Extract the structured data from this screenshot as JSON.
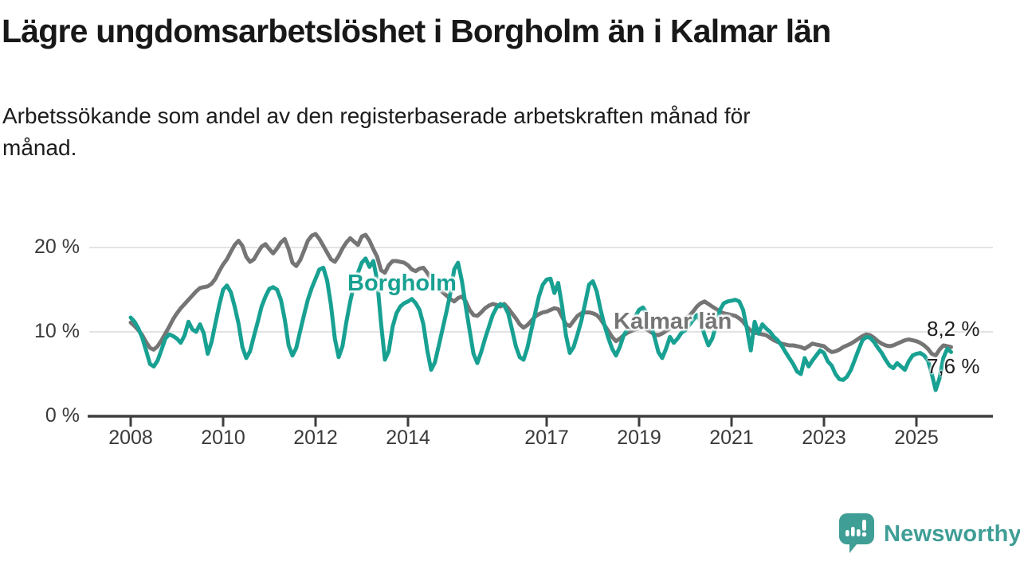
{
  "header": {
    "title": "Lägre ungdomsarbetslöshet i Borgholm än i Kalmar län",
    "subtitle_lines": [
      "Arbetssökande som andel av den registerbaserade arbetskraften månad för",
      "månad."
    ]
  },
  "chart_data": {
    "type": "line",
    "title": "Lägre ungdomsarbetslöshet i Borgholm än i Kalmar län",
    "subtitle": "Arbetssökande som andel av den registerbaserade arbetskraften månad för månad.",
    "x_start": 2008.0,
    "x_step_years": 0.0833333,
    "x_axis": {
      "ticks": [
        2008,
        2010,
        2012,
        2014,
        2017,
        2019,
        2021,
        2023,
        2025
      ]
    },
    "y_axis": {
      "range": [
        0,
        23
      ],
      "ticks": [
        {
          "value": 0,
          "label": "0 %"
        },
        {
          "value": 10,
          "label": "10 %"
        },
        {
          "value": 20,
          "label": "20 %"
        }
      ]
    },
    "grid": true,
    "legend_position": "inline-labels",
    "series": [
      {
        "name": "Borgholm",
        "color": "#18a192",
        "end_label": "7,6 %",
        "values": [
          11.7,
          11.2,
          10.4,
          9.3,
          7.8,
          6.2,
          5.9,
          6.6,
          7.9,
          9.2,
          9.7,
          9.5,
          9.2,
          8.7,
          9.6,
          11.2,
          10.3,
          10.0,
          10.9,
          9.8,
          7.4,
          8.8,
          11.0,
          13.2,
          15.0,
          15.5,
          14.7,
          13.0,
          11.0,
          8.2,
          6.9,
          7.7,
          9.5,
          11.2,
          13.0,
          14.2,
          15.1,
          15.3,
          15.0,
          13.8,
          11.5,
          8.4,
          7.2,
          8.1,
          10.1,
          12.0,
          13.8,
          15.2,
          16.3,
          17.4,
          17.6,
          16.1,
          13.2,
          9.2,
          7.0,
          8.3,
          11.2,
          13.6,
          15.6,
          17.0,
          18.2,
          18.7,
          17.7,
          18.4,
          16.1,
          11.0,
          6.7,
          7.7,
          10.6,
          12.2,
          13.0,
          13.4,
          13.6,
          13.9,
          13.4,
          12.6,
          10.9,
          7.8,
          5.5,
          6.4,
          8.4,
          10.4,
          12.4,
          14.6,
          17.4,
          18.2,
          16.0,
          13.0,
          10.2,
          7.4,
          6.3,
          7.6,
          9.2,
          10.6,
          12.0,
          12.9,
          13.3,
          13.1,
          12.2,
          10.3,
          8.3,
          7.0,
          6.7,
          8.1,
          10.2,
          12.2,
          14.2,
          15.6,
          16.2,
          16.3,
          14.6,
          15.8,
          13.1,
          9.6,
          7.5,
          8.2,
          9.7,
          11.3,
          13.4,
          15.6,
          16.0,
          14.8,
          12.6,
          10.8,
          9.3,
          8.0,
          7.2,
          8.2,
          9.6,
          10.3,
          10.8,
          11.8,
          12.6,
          12.9,
          12.2,
          10.9,
          9.4,
          7.6,
          6.9,
          8.0,
          9.4,
          8.7,
          9.2,
          9.9,
          10.2,
          10.8,
          11.4,
          12.0,
          11.2,
          9.6,
          8.4,
          9.2,
          10.8,
          12.6,
          13.4,
          13.6,
          13.7,
          13.8,
          13.6,
          12.6,
          10.4,
          7.8,
          11.2,
          9.8,
          10.9,
          10.4,
          10.0,
          9.4,
          9.0,
          8.4,
          7.6,
          6.9,
          6.2,
          5.3,
          5.0,
          6.9,
          5.9,
          6.6,
          7.2,
          7.8,
          7.5,
          6.5,
          6.0,
          5.0,
          4.4,
          4.3,
          4.7,
          5.5,
          6.7,
          7.9,
          9.0,
          9.4,
          9.3,
          8.8,
          8.1,
          7.5,
          6.7,
          6.0,
          5.7,
          6.3,
          5.9,
          5.5,
          6.5,
          7.2,
          7.4,
          7.5,
          7.2,
          6.6,
          5.0,
          3.1,
          4.5,
          6.9,
          8.0,
          7.6
        ]
      },
      {
        "name": "Kalmar län",
        "color": "#757575",
        "end_label": "8,2 %",
        "values": [
          11.1,
          10.7,
          10.2,
          9.6,
          8.8,
          8.1,
          7.9,
          8.3,
          9.0,
          9.8,
          10.6,
          11.5,
          12.2,
          12.8,
          13.3,
          13.8,
          14.3,
          14.8,
          15.2,
          15.3,
          15.4,
          15.7,
          16.3,
          17.2,
          18.0,
          18.6,
          19.5,
          20.3,
          20.8,
          20.2,
          18.9,
          18.3,
          18.6,
          19.4,
          20.1,
          20.4,
          19.8,
          19.3,
          19.9,
          20.6,
          21.0,
          19.8,
          18.2,
          17.8,
          18.5,
          19.6,
          20.8,
          21.4,
          21.6,
          21.0,
          20.2,
          19.4,
          18.6,
          18.3,
          19.0,
          19.9,
          20.6,
          21.1,
          20.7,
          20.3,
          21.3,
          21.5,
          20.8,
          19.8,
          18.9,
          17.3,
          17.0,
          17.9,
          18.4,
          18.4,
          18.3,
          18.2,
          17.9,
          17.4,
          17.2,
          17.5,
          17.6,
          17.0,
          16.2,
          15.6,
          15.1,
          14.7,
          14.3,
          13.9,
          13.6,
          14.0,
          14.2,
          13.6,
          12.6,
          12.0,
          11.9,
          12.3,
          12.8,
          13.1,
          13.3,
          13.2,
          13.0,
          13.3,
          12.8,
          12.2,
          11.6,
          10.9,
          10.5,
          10.8,
          11.3,
          11.8,
          12.1,
          12.3,
          12.4,
          12.6,
          12.8,
          12.7,
          11.8,
          10.9,
          10.7,
          11.3,
          11.9,
          12.2,
          12.3,
          12.3,
          12.2,
          12.0,
          11.5,
          10.8,
          10.1,
          9.4,
          8.9,
          9.2,
          9.6,
          9.9,
          10.1,
          10.3,
          10.4,
          10.5,
          10.3,
          10.0,
          9.7,
          9.6,
          9.8,
          10.1,
          10.4,
          10.7,
          11.0,
          11.3,
          11.6,
          11.9,
          12.4,
          13.0,
          13.4,
          13.6,
          13.3,
          13.0,
          12.7,
          12.4,
          12.2,
          12.1,
          12.0,
          11.9,
          11.6,
          11.2,
          10.6,
          10.1,
          9.9,
          9.8,
          9.7,
          9.6,
          9.3,
          9.0,
          8.8,
          8.6,
          8.5,
          8.4,
          8.4,
          8.3,
          8.2,
          8.0,
          8.3,
          8.6,
          8.5,
          8.4,
          8.3,
          7.9,
          7.6,
          7.7,
          7.9,
          8.2,
          8.4,
          8.6,
          8.9,
          9.2,
          9.5,
          9.7,
          9.6,
          9.3,
          8.9,
          8.6,
          8.4,
          8.3,
          8.4,
          8.6,
          8.8,
          9.0,
          9.1,
          9.0,
          8.9,
          8.7,
          8.4,
          8.0,
          7.4,
          7.2,
          7.9,
          8.4,
          8.3,
          8.2
        ]
      }
    ],
    "colors": {
      "borgholm": "#18a192",
      "kalmar_lan": "#757575",
      "gridline": "#dadada",
      "axis": "#3e3e3e",
      "text": "#3a3a3a"
    }
  },
  "footer": {
    "brand": "Newsworthy",
    "brand_color": "#3f9e96"
  }
}
